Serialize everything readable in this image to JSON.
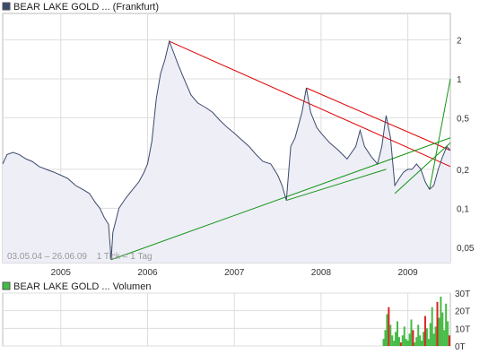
{
  "colors": {
    "price_line": "#3a4a6b",
    "price_fill": "#eeeef7",
    "trend_red": "#e00000",
    "trend_green": "#149614",
    "volume": "#44bb44",
    "volume_red": "#dd2222",
    "grid": "#dddddd",
    "axis": "#999999"
  },
  "chart_data": [
    {
      "type": "line",
      "title": "BEAR LAKE GOLD ... (Frankfurt)",
      "legend_marker_color": "#3a4a6b",
      "date_range_label": "03.05.04 – 26.06.09",
      "tick_label": "1 Tick = 1 Tag",
      "x_tick_labels": [
        "2005",
        "2006",
        "2007",
        "2008",
        "2009"
      ],
      "x_ticks": [
        2005.0,
        2006.0,
        2007.0,
        2008.0,
        2009.0
      ],
      "xlim": [
        2004.33,
        2009.49
      ],
      "y_scale": "log",
      "y_tick_labels": [
        "2",
        "1",
        "0,5",
        "0,2",
        "0,1",
        "0,05"
      ],
      "y_ticks": [
        2,
        1,
        0.5,
        0.2,
        0.1,
        0.05
      ],
      "ylim": [
        0.038,
        3.2
      ],
      "grid": true,
      "series": [
        {
          "values": [
            [
              2004.33,
              0.22
            ],
            [
              2004.38,
              0.26
            ],
            [
              2004.45,
              0.27
            ],
            [
              2004.52,
              0.26
            ],
            [
              2004.6,
              0.24
            ],
            [
              2004.67,
              0.23
            ],
            [
              2004.75,
              0.21
            ],
            [
              2004.83,
              0.2
            ],
            [
              2004.92,
              0.19
            ],
            [
              2005.0,
              0.18
            ],
            [
              2005.08,
              0.17
            ],
            [
              2005.17,
              0.15
            ],
            [
              2005.25,
              0.14
            ],
            [
              2005.33,
              0.13
            ],
            [
              2005.4,
              0.11
            ],
            [
              2005.45,
              0.1
            ],
            [
              2005.5,
              0.085
            ],
            [
              2005.55,
              0.075
            ],
            [
              2005.58,
              0.04
            ],
            [
              2005.6,
              0.065
            ],
            [
              2005.67,
              0.1
            ],
            [
              2005.75,
              0.12
            ],
            [
              2005.83,
              0.14
            ],
            [
              2005.9,
              0.16
            ],
            [
              2005.96,
              0.19
            ],
            [
              2006.0,
              0.22
            ],
            [
              2006.05,
              0.33
            ],
            [
              2006.1,
              0.7
            ],
            [
              2006.15,
              1.1
            ],
            [
              2006.2,
              1.4
            ],
            [
              2006.25,
              1.95
            ],
            [
              2006.3,
              1.6
            ],
            [
              2006.35,
              1.3
            ],
            [
              2006.42,
              1.0
            ],
            [
              2006.5,
              0.75
            ],
            [
              2006.58,
              0.65
            ],
            [
              2006.67,
              0.6
            ],
            [
              2006.75,
              0.55
            ],
            [
              2006.83,
              0.48
            ],
            [
              2006.92,
              0.42
            ],
            [
              2007.0,
              0.38
            ],
            [
              2007.08,
              0.34
            ],
            [
              2007.17,
              0.3
            ],
            [
              2007.25,
              0.26
            ],
            [
              2007.33,
              0.23
            ],
            [
              2007.42,
              0.22
            ],
            [
              2007.5,
              0.18
            ],
            [
              2007.55,
              0.15
            ],
            [
              2007.6,
              0.115
            ],
            [
              2007.65,
              0.3
            ],
            [
              2007.7,
              0.35
            ],
            [
              2007.78,
              0.55
            ],
            [
              2007.83,
              0.85
            ],
            [
              2007.88,
              0.55
            ],
            [
              2007.95,
              0.42
            ],
            [
              2008.0,
              0.38
            ],
            [
              2008.1,
              0.32
            ],
            [
              2008.2,
              0.28
            ],
            [
              2008.3,
              0.24
            ],
            [
              2008.4,
              0.3
            ],
            [
              2008.45,
              0.4
            ],
            [
              2008.5,
              0.3
            ],
            [
              2008.58,
              0.25
            ],
            [
              2008.65,
              0.22
            ],
            [
              2008.7,
              0.3
            ],
            [
              2008.75,
              0.52
            ],
            [
              2008.8,
              0.35
            ],
            [
              2008.85,
              0.15
            ],
            [
              2008.9,
              0.17
            ],
            [
              2008.95,
              0.19
            ],
            [
              2009.0,
              0.2
            ],
            [
              2009.05,
              0.2
            ],
            [
              2009.1,
              0.22
            ],
            [
              2009.15,
              0.2
            ],
            [
              2009.2,
              0.16
            ],
            [
              2009.25,
              0.14
            ],
            [
              2009.3,
              0.15
            ],
            [
              2009.35,
              0.2
            ],
            [
              2009.4,
              0.25
            ],
            [
              2009.45,
              0.3
            ],
            [
              2009.49,
              0.28
            ]
          ]
        }
      ],
      "trendlines": [
        {
          "color": "red",
          "points": [
            [
              2006.25,
              1.95
            ],
            [
              2009.49,
              0.21
            ]
          ]
        },
        {
          "color": "red",
          "points": [
            [
              2007.83,
              0.85
            ],
            [
              2009.49,
              0.28
            ]
          ]
        },
        {
          "color": "green",
          "points": [
            [
              2005.58,
              0.04
            ],
            [
              2009.49,
              0.35
            ]
          ]
        },
        {
          "color": "green",
          "points": [
            [
              2007.6,
              0.115
            ],
            [
              2008.75,
              0.2
            ]
          ]
        },
        {
          "color": "green",
          "points": [
            [
              2008.85,
              0.13
            ],
            [
              2009.49,
              0.32
            ]
          ]
        },
        {
          "color": "green",
          "points": [
            [
              2009.25,
              0.14
            ],
            [
              2009.49,
              1.0
            ]
          ]
        }
      ]
    },
    {
      "type": "bar",
      "title": "BEAR LAKE GOLD ... Volumen",
      "legend_marker_color": "#44bb44",
      "y_tick_labels": [
        "30T",
        "20T",
        "10T",
        "0T"
      ],
      "y_ticks": [
        30,
        20,
        10,
        0
      ],
      "ylim": [
        0,
        30
      ],
      "grid": true,
      "x": [
        2008.72,
        2008.74,
        2008.76,
        2008.78,
        2008.8,
        2008.82,
        2008.84,
        2008.86,
        2008.88,
        2008.9,
        2008.92,
        2008.94,
        2008.96,
        2008.98,
        2009.0,
        2009.02,
        2009.04,
        2009.06,
        2009.08,
        2009.1,
        2009.12,
        2009.14,
        2009.16,
        2009.18,
        2009.2,
        2009.22,
        2009.24,
        2009.26,
        2009.28,
        2009.3,
        2009.32,
        2009.34,
        2009.36,
        2009.38,
        2009.4,
        2009.42,
        2009.44,
        2009.46,
        2009.48
      ],
      "values": [
        4,
        9,
        18,
        22,
        12,
        6,
        3,
        8,
        14,
        5,
        2,
        6,
        11,
        4,
        3,
        7,
        15,
        9,
        2,
        5,
        12,
        6,
        3,
        8,
        17,
        10,
        4,
        13,
        22,
        7,
        11,
        25,
        16,
        28,
        19,
        9,
        24,
        14,
        6
      ]
    }
  ]
}
